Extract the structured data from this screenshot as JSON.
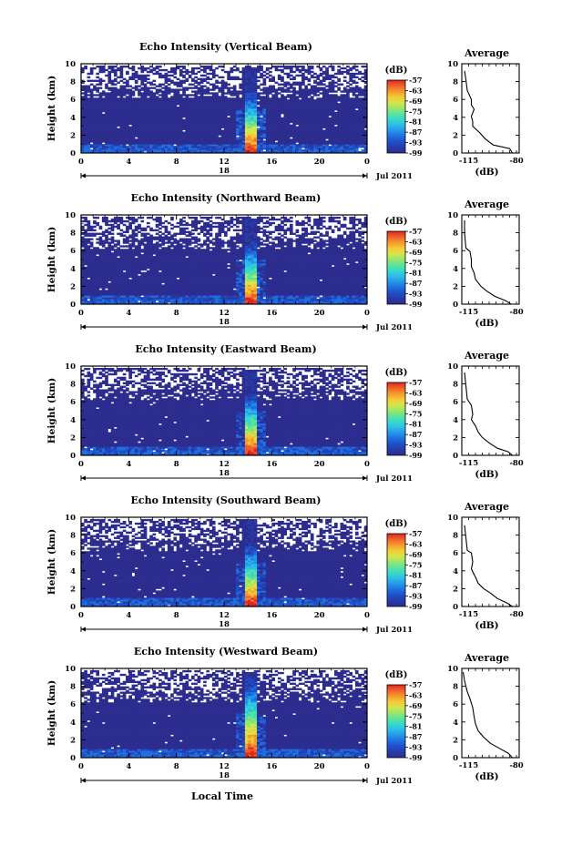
{
  "chart_data": {
    "type": "heatmap",
    "panels": [
      {
        "title": "Echo Intensity (Vertical Beam)",
        "profile": [
          [
            -118,
            9.2
          ],
          [
            -117,
            8.2
          ],
          [
            -116,
            7.0
          ],
          [
            -113,
            6.0
          ],
          [
            -113,
            5.4
          ],
          [
            -111,
            4.9
          ],
          [
            -113,
            4.1
          ],
          [
            -112,
            3.5
          ],
          [
            -112,
            3.0
          ],
          [
            -107,
            2.3
          ],
          [
            -103,
            1.6
          ],
          [
            -97,
            0.9
          ],
          [
            -85,
            0.5
          ],
          [
            -83,
            0
          ]
        ]
      },
      {
        "title": "Echo Intensity (Northward Beam)",
        "profile": [
          [
            -118,
            9.4
          ],
          [
            -118,
            8.0
          ],
          [
            -117,
            6.3
          ],
          [
            -114,
            5.9
          ],
          [
            -113,
            5.0
          ],
          [
            -113,
            4.2
          ],
          [
            -111,
            3.5
          ],
          [
            -110,
            2.8
          ],
          [
            -106,
            2.0
          ],
          [
            -102,
            1.5
          ],
          [
            -96,
            0.9
          ],
          [
            -88,
            0.4
          ],
          [
            -84,
            0
          ]
        ]
      },
      {
        "title": "Echo Intensity (Eastward Beam)",
        "profile": [
          [
            -118,
            9.3
          ],
          [
            -117,
            7.8
          ],
          [
            -116,
            6.3
          ],
          [
            -113,
            5.6
          ],
          [
            -112,
            4.6
          ],
          [
            -113,
            4.0
          ],
          [
            -110,
            3.3
          ],
          [
            -108,
            2.6
          ],
          [
            -105,
            2.0
          ],
          [
            -100,
            1.4
          ],
          [
            -94,
            0.8
          ],
          [
            -86,
            0.4
          ],
          [
            -83,
            0
          ]
        ]
      },
      {
        "title": "Echo Intensity (Southward Beam)",
        "profile": [
          [
            -118,
            9.1
          ],
          [
            -117,
            7.7
          ],
          [
            -116,
            6.3
          ],
          [
            -113,
            6.0
          ],
          [
            -112,
            5.0
          ],
          [
            -113,
            4.2
          ],
          [
            -110,
            3.3
          ],
          [
            -108,
            2.6
          ],
          [
            -104,
            2.0
          ],
          [
            -99,
            1.5
          ],
          [
            -94,
            0.9
          ],
          [
            -87,
            0.4
          ],
          [
            -83,
            0
          ]
        ]
      },
      {
        "title": "Echo Intensity (Westward Beam)",
        "profile": [
          [
            -119,
            9.6
          ],
          [
            -118,
            8.6
          ],
          [
            -116,
            7.4
          ],
          [
            -114,
            6.6
          ],
          [
            -112,
            5.6
          ],
          [
            -111,
            4.6
          ],
          [
            -110,
            3.8
          ],
          [
            -108,
            3.0
          ],
          [
            -104,
            2.3
          ],
          [
            -99,
            1.6
          ],
          [
            -92,
            1.0
          ],
          [
            -86,
            0.5
          ],
          [
            -83,
            0
          ]
        ]
      }
    ],
    "x_ticks": [
      "0",
      "4",
      "8",
      "12",
      "16",
      "20",
      "0"
    ],
    "xlim": [
      0,
      24
    ],
    "y_ticks": [
      "0",
      "2",
      "4",
      "6",
      "8",
      "10"
    ],
    "ylim": [
      0,
      10
    ],
    "ylabel": "Height (km)",
    "date_marker": "18",
    "date_label": "Jul 2011",
    "xlabel": "Local Time",
    "colorbar": {
      "unit": "(dB)",
      "ticks": [
        "-57",
        "-63",
        "-69",
        "-75",
        "-81",
        "-87",
        "-93",
        "-99"
      ],
      "range": [
        -99,
        -57
      ],
      "colors": [
        "#2d2d8f",
        "#273aa6",
        "#1f4fc8",
        "#1f6fe0",
        "#2496e8",
        "#2dbde9",
        "#37d9c9",
        "#5de39a",
        "#9ae66a",
        "#d6e54a",
        "#f5c935",
        "#f59a2e",
        "#f0612a",
        "#e02520"
      ]
    },
    "profile_title": "Average",
    "profile_xticks": [
      "-115",
      "-80"
    ],
    "profile_xlim": [
      -120,
      -78
    ],
    "profile_xlabel": "(dB)"
  }
}
